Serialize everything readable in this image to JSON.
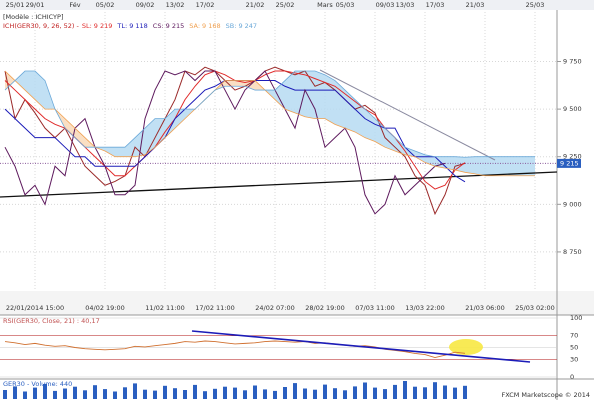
{
  "header": {
    "model": "[Modèle : ICHICYP]",
    "footer": "FXCM Marketscope © 2014"
  },
  "chart_data": [
    {
      "type": "line",
      "title": "ICH(GER30, 9, 26, 52) -",
      "categories": [
        null,
        "25/01",
        null,
        "29/01",
        null,
        null,
        null,
        "Fév",
        null,
        null,
        "05/02",
        null,
        null,
        null,
        "09/02",
        null,
        null,
        "13/02",
        null,
        null,
        "17/02",
        null,
        null,
        null,
        null,
        "21/02",
        null,
        null,
        "25/02",
        null,
        null,
        null,
        "Mars",
        null,
        "05/03",
        null,
        null,
        null,
        "09/03",
        null,
        "13/03",
        null,
        null,
        "17/03",
        null,
        null,
        null,
        "21/03",
        null,
        null,
        null,
        null,
        null,
        "25/03",
        null,
        null
      ],
      "categories_bottom": [
        null,
        null,
        null,
        "22/01/2014 15:00",
        null,
        null,
        null,
        null,
        null,
        null,
        "04/02 19:00",
        null,
        null,
        null,
        null,
        null,
        "11/02 11:00",
        null,
        null,
        null,
        null,
        "17/02 11:00",
        null,
        null,
        null,
        null,
        null,
        "24/02 07:00",
        null,
        null,
        null,
        null,
        "28/02 19:00",
        null,
        null,
        null,
        null,
        "07/03 11:00",
        null,
        null,
        null,
        null,
        "13/03 22:00",
        null,
        null,
        null,
        null,
        null,
        "21/03 06:00",
        null,
        null,
        null,
        null,
        "25/03 02:00",
        null,
        null
      ],
      "ylim": [
        8550,
        10010
      ],
      "yticks": [
        {
          "value": 8750,
          "label": "8 750"
        },
        {
          "value": 9000,
          "label": "9 000"
        },
        {
          "value": 9250,
          "label": "9 250"
        },
        {
          "value": 9500,
          "label": "9 500"
        },
        {
          "value": 9750,
          "label": "9 750"
        }
      ],
      "grid": true,
      "last_price": {
        "value": 9215,
        "label": "9 215"
      },
      "series": [
        {
          "color": "#9b2a2a",
          "values": [
            9700,
            9450,
            9550,
            9480,
            9400,
            9350,
            9400,
            9300,
            9200,
            9150,
            9100,
            9120,
            9150,
            9300,
            9250,
            9350,
            9450,
            9550,
            9700,
            9680,
            9720,
            9700,
            9650,
            9600,
            9620,
            9650,
            9700,
            9720,
            9700,
            9680,
            9700,
            9620,
            9640,
            9600,
            9550,
            9500,
            9520,
            9480,
            9350,
            9300,
            9250,
            9150,
            9100,
            8950,
            9050,
            9200,
            9215,
            null,
            null,
            null,
            null,
            null,
            null,
            null,
            null,
            null
          ]
        },
        {
          "name": "SL:",
          "color": "#e02a2a",
          "legend_value": {
            "value": 9219,
            "label": "9 219"
          },
          "values": [
            9650,
            9600,
            9550,
            9500,
            9450,
            9420,
            9400,
            9350,
            9300,
            9250,
            9200,
            9150,
            9150,
            9200,
            9250,
            9300,
            9380,
            9450,
            9550,
            9620,
            9680,
            9700,
            9680,
            9650,
            9640,
            9650,
            9680,
            9700,
            9700,
            9690,
            9680,
            9660,
            9640,
            9620,
            9580,
            9540,
            9500,
            9470,
            9400,
            9350,
            9280,
            9200,
            9120,
            9080,
            9100,
            9180,
            9219,
            null,
            null,
            null,
            null,
            null,
            null,
            null,
            null,
            null
          ]
        },
        {
          "name": "TL:",
          "color": "#1c1cb8",
          "legend_value": {
            "value": 9118,
            "label": "9 118"
          },
          "values": [
            9500,
            9450,
            9400,
            9350,
            9350,
            9350,
            9300,
            9250,
            9250,
            9200,
            9200,
            9200,
            9200,
            9200,
            9250,
            9300,
            9350,
            9450,
            9500,
            9550,
            9600,
            9620,
            9650,
            9650,
            9650,
            9650,
            9650,
            9650,
            9620,
            9600,
            9600,
            9600,
            9600,
            9600,
            9550,
            9500,
            9450,
            9420,
            9400,
            9400,
            9300,
            9250,
            9250,
            9250,
            9200,
            9150,
            9118,
            null,
            null,
            null,
            null,
            null,
            null,
            null,
            null,
            null
          ]
        },
        {
          "name": "CS:",
          "color": "#5e1a5e",
          "legend_value": {
            "value": 9215,
            "label": "9 215"
          },
          "values": [
            9300,
            9200,
            9050,
            9100,
            9000,
            9200,
            9150,
            9400,
            9450,
            9300,
            9200,
            9050,
            9050,
            9100,
            9450,
            9600,
            9700,
            9680,
            9700,
            9650,
            9700,
            9700,
            9600,
            9500,
            9600,
            9650,
            9700,
            9600,
            9500,
            9400,
            9600,
            9500,
            9300,
            9350,
            9400,
            9300,
            9050,
            8950,
            9000,
            9150,
            9050,
            9100,
            9150,
            9200,
            9215,
            null,
            null,
            null,
            null,
            null,
            null,
            null,
            null,
            null,
            null,
            null
          ]
        },
        {
          "name": "SA:",
          "color": "#f0a050",
          "legend_value": {
            "value": 9168,
            "label": "9 168"
          },
          "values": [
            9700,
            9650,
            9600,
            9550,
            9500,
            9500,
            9450,
            9400,
            9350,
            9300,
            9280,
            9250,
            9250,
            9250,
            9260,
            9300,
            9350,
            9400,
            9450,
            9500,
            9550,
            9600,
            9650,
            9650,
            9650,
            9650,
            9600,
            9550,
            9500,
            9480,
            9460,
            9450,
            9450,
            9420,
            9400,
            9380,
            9350,
            9330,
            9300,
            9280,
            9260,
            9250,
            9220,
            9200,
            9190,
            9180,
            9168,
            9160,
            9150,
            9150,
            9150,
            9150,
            9150,
            9150,
            null,
            null
          ]
        },
        {
          "name": "SB:",
          "color": "#6aa8d8",
          "legend_value": {
            "value": 9247,
            "label": "9 247"
          },
          "values": [
            9600,
            9650,
            9700,
            9700,
            9650,
            9500,
            9400,
            9350,
            9300,
            9300,
            9300,
            9300,
            9300,
            9350,
            9400,
            9450,
            9450,
            9500,
            9500,
            9500,
            9550,
            9600,
            9620,
            9620,
            9620,
            9600,
            9600,
            9600,
            9650,
            9700,
            9700,
            9700,
            9680,
            9650,
            9600,
            9550,
            9500,
            9450,
            9400,
            9350,
            9300,
            9280,
            9260,
            9250,
            9250,
            9250,
            9247,
            9250,
            9250,
            9250,
            9250,
            9250,
            9250,
            9250,
            null,
            null
          ]
        }
      ]
    },
    {
      "type": "line",
      "title": "RSI(GER30, Close, 21) : 40,17",
      "ylim": [
        0,
        100
      ],
      "yticks": [
        0,
        30,
        50,
        70,
        100
      ],
      "color": "#d07030",
      "values": [
        60,
        58,
        55,
        57,
        54,
        52,
        53,
        50,
        48,
        47,
        46,
        47,
        48,
        52,
        51,
        53,
        55,
        57,
        60,
        59,
        61,
        60,
        58,
        56,
        57,
        58,
        60,
        61,
        60,
        59,
        60,
        57,
        58,
        56,
        54,
        52,
        53,
        51,
        47,
        45,
        43,
        40,
        38,
        33,
        37,
        42,
        40.17
      ]
    },
    {
      "type": "bar",
      "title": "GER30 - Volume: 440",
      "color": "#2a5fc0",
      "values": [
        300,
        420,
        250,
        380,
        500,
        270,
        350,
        410,
        290,
        460,
        330,
        250,
        390,
        520,
        310,
        280,
        440,
        360,
        300,
        470,
        260,
        340,
        410,
        380,
        290,
        450,
        320,
        270,
        400,
        530,
        350,
        310,
        480,
        360,
        290,
        420,
        550,
        380,
        330,
        470,
        600,
        410,
        390,
        560,
        450,
        380,
        440
      ]
    }
  ]
}
